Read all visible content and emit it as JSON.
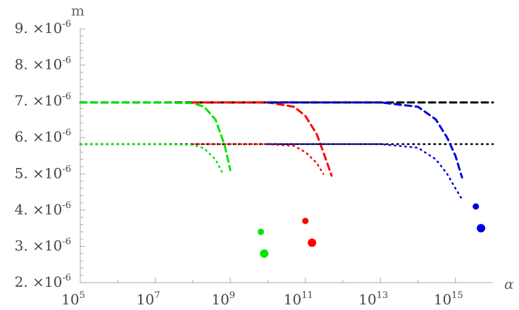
{
  "chart_data": {
    "type": "line",
    "title": "",
    "xlabel": "α",
    "ylabel": "m",
    "x_scale": "log",
    "xlim": [
      100000,
      1e+16
    ],
    "ylim": [
      2e-06,
      9e-06
    ],
    "grid": false,
    "legend": "none",
    "x_ticks": [
      {
        "value": 100000,
        "base": "10",
        "exp": "5"
      },
      {
        "value": 10000000,
        "base": "10",
        "exp": "7"
      },
      {
        "value": 1000000000,
        "base": "10",
        "exp": "9"
      },
      {
        "value": 100000000000,
        "base": "10",
        "exp": "11"
      },
      {
        "value": 10000000000000,
        "base": "10",
        "exp": "13"
      },
      {
        "value": 1000000000000000,
        "base": "10",
        "exp": "15"
      }
    ],
    "y_ticks": [
      {
        "value": 2e-06,
        "mant": "2.",
        "mid": "×10",
        "exp": "-6"
      },
      {
        "value": 3e-06,
        "mant": "3.",
        "mid": "×10",
        "exp": "-6"
      },
      {
        "value": 4e-06,
        "mant": "4.",
        "mid": "×10",
        "exp": "-6"
      },
      {
        "value": 5e-06,
        "mant": "5.",
        "mid": "×10",
        "exp": "-6"
      },
      {
        "value": 6e-06,
        "mant": "6.",
        "mid": "×10",
        "exp": "-6"
      },
      {
        "value": 7e-06,
        "mant": "7.",
        "mid": "×10",
        "exp": "-6"
      },
      {
        "value": 8e-06,
        "mant": "8.",
        "mid": "×10",
        "exp": "-6"
      },
      {
        "value": 9e-06,
        "mant": "9.",
        "mid": "×10",
        "exp": "-6"
      }
    ],
    "reference_lines": [
      {
        "y": 6.97e-06,
        "color": "#000000",
        "style": "dashed"
      },
      {
        "y": 5.82e-06,
        "color": "#000000",
        "style": "dotted"
      }
    ],
    "series": [
      {
        "color": "#00e600",
        "style": "dashed",
        "x": [
          100000,
          10000000,
          100000000,
          200000000,
          400000000,
          700000000,
          1000000000
        ],
        "y": [
          6.97e-06,
          6.97e-06,
          6.95e-06,
          6.85e-06,
          6.5e-06,
          5.8e-06,
          5.1e-06
        ]
      },
      {
        "color": "#00e600",
        "style": "dotted",
        "x": [
          100000,
          10000000,
          100000000,
          200000000,
          400000000,
          600000000
        ],
        "y": [
          5.82e-06,
          5.82e-06,
          5.8e-06,
          5.7e-06,
          5.4e-06,
          5.05e-06
        ]
      },
      {
        "color": "#ff0000",
        "style": "dashed",
        "x": [
          100000000,
          10000000000,
          50000000000,
          100000000000,
          200000000000,
          300000000000,
          500000000000
        ],
        "y": [
          6.97e-06,
          6.97e-06,
          6.85e-06,
          6.6e-06,
          6.1e-06,
          5.6e-06,
          4.95e-06
        ]
      },
      {
        "color": "#ff0000",
        "style": "dotted",
        "x": [
          100000000,
          10000000000,
          50000000000,
          100000000000,
          200000000000,
          300000000000
        ],
        "y": [
          5.82e-06,
          5.82e-06,
          5.77e-06,
          5.6e-06,
          5.3e-06,
          5e-06
        ]
      },
      {
        "color": "#0000dd",
        "style": "dashed",
        "x": [
          10000000000,
          10000000000000,
          100000000000000,
          300000000000000,
          600000000000000,
          1000000000000000,
          1500000000000000
        ],
        "y": [
          6.97e-06,
          6.97e-06,
          6.85e-06,
          6.5e-06,
          6e-06,
          5.5e-06,
          4.9e-06
        ]
      },
      {
        "color": "#0000dd",
        "style": "dotted",
        "x": [
          10000000000,
          10000000000000,
          100000000000000,
          300000000000000,
          600000000000000,
          1000000000000000,
          1500000000000000
        ],
        "y": [
          5.82e-06,
          5.82e-06,
          5.72e-06,
          5.4e-06,
          5e-06,
          4.6e-06,
          4.3e-06
        ]
      }
    ],
    "points": [
      {
        "x": 6500000000,
        "y": 3.4e-06,
        "color": "#00e600",
        "size": "small"
      },
      {
        "x": 8000000000,
        "y": 2.8e-06,
        "color": "#00e600",
        "size": "large"
      },
      {
        "x": 100000000000,
        "y": 3.7e-06,
        "color": "#ff0000",
        "size": "small"
      },
      {
        "x": 150000000000,
        "y": 3.1e-06,
        "color": "#ff0000",
        "size": "large"
      },
      {
        "x": 3500000000000000,
        "y": 4.1e-06,
        "color": "#0000dd",
        "size": "small"
      },
      {
        "x": 4800000000000000,
        "y": 3.5e-06,
        "color": "#0000dd",
        "size": "large"
      }
    ]
  }
}
